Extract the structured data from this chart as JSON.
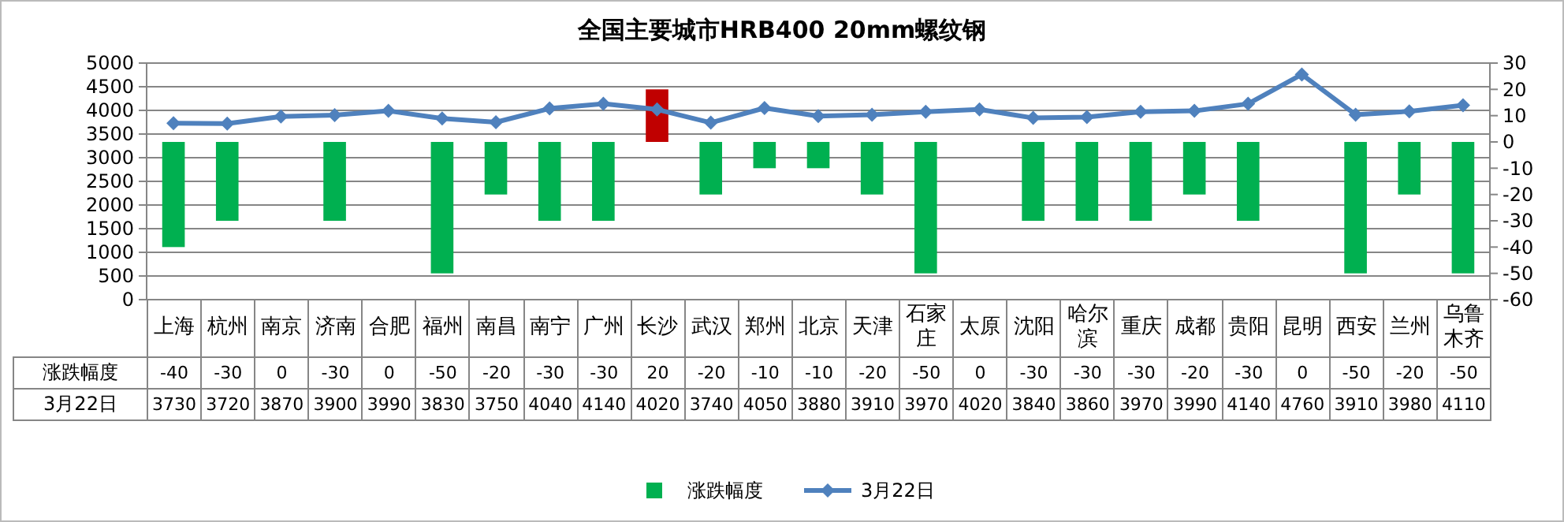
{
  "chart_data": {
    "type": "bar",
    "title": "全国主要城市HRB400 20mm螺纹钢",
    "categories": [
      "上海",
      "杭州",
      "南京",
      "济南",
      "合肥",
      "福州",
      "南昌",
      "南宁",
      "广州",
      "长沙",
      "武汉",
      "郑州",
      "北京",
      "天津",
      "石家庄",
      "太原",
      "沈阳",
      "哈尔滨",
      "重庆",
      "成都",
      "贵阳",
      "昆明",
      "西安",
      "兰州",
      "乌鲁木齐"
    ],
    "series": [
      {
        "name": "涨跌幅度",
        "axis": "y2",
        "color": "#00b050",
        "colors": [
          "#00b050",
          "#00b050",
          "#00b050",
          "#00b050",
          "#00b050",
          "#00b050",
          "#00b050",
          "#00b050",
          "#00b050",
          "#c00000",
          "#00b050",
          "#00b050",
          "#00b050",
          "#00b050",
          "#00b050",
          "#00b050",
          "#00b050",
          "#00b050",
          "#00b050",
          "#00b050",
          "#00b050",
          "#00b050",
          "#00b050",
          "#00b050",
          "#00b050"
        ],
        "values": [
          -40,
          -30,
          0,
          -30,
          0,
          -50,
          -20,
          -30,
          -30,
          20,
          -20,
          -10,
          -10,
          -20,
          -50,
          0,
          -30,
          -30,
          -30,
          -20,
          -30,
          0,
          -50,
          -20,
          -50
        ]
      },
      {
        "name": "3月22日",
        "type": "line",
        "color": "#4f81bd",
        "values": [
          3730,
          3720,
          3870,
          3900,
          3990,
          3830,
          3750,
          4040,
          4140,
          4020,
          3740,
          4050,
          3880,
          3910,
          3970,
          4020,
          3840,
          3860,
          3970,
          3990,
          4140,
          4760,
          3910,
          3980,
          4110
        ]
      }
    ],
    "ylim": [
      0,
      5000
    ],
    "yticks": [
      0,
      500,
      1000,
      1500,
      2000,
      2500,
      3000,
      3500,
      4000,
      4500,
      5000
    ],
    "y2lim": [
      -60,
      30
    ],
    "y2ticks": [
      -60,
      -50,
      -40,
      -30,
      -20,
      -10,
      0,
      10,
      20,
      30
    ],
    "grid": "y",
    "legend": "bottom",
    "marker": "diamond",
    "data_labels": true
  }
}
